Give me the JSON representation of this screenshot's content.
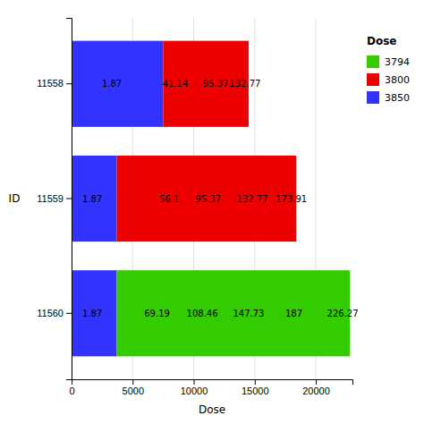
{
  "chart_data": {
    "type": "bar",
    "orientation": "horizontal",
    "stacked": true,
    "xlabel": "Dose",
    "ylabel": "ID",
    "legend_title": "Dose",
    "legend": "right",
    "grid": true,
    "categories": [
      "11558",
      "11559",
      "11560"
    ],
    "series": [
      {
        "name": "3794",
        "color": "#33CC00",
        "values": [
          null,
          null,
          19100
        ]
      },
      {
        "name": "3800",
        "color": "#EE0000",
        "values": [
          7000,
          14700,
          null
        ]
      },
      {
        "name": "3850",
        "color": "#3333FF",
        "values": [
          7500,
          3700,
          3700
        ]
      }
    ],
    "xlim": [
      0,
      23000
    ],
    "xticks": [
      0,
      5000,
      10000,
      15000,
      20000
    ],
    "annotations": [
      {
        "text": "1.87",
        "x": 3300,
        "y": "11558"
      },
      {
        "text": "41.14",
        "x": 8500,
        "y": "11558"
      },
      {
        "text": "95.37",
        "x": 11800,
        "y": "11558"
      },
      {
        "text": "132.77",
        "x": 14200,
        "y": "11558"
      },
      {
        "text": "1.87",
        "x": 1700,
        "y": "11559"
      },
      {
        "text": "56.1",
        "x": 8000,
        "y": "11559"
      },
      {
        "text": "95.37",
        "x": 11200,
        "y": "11559"
      },
      {
        "text": "132.77",
        "x": 14800,
        "y": "11559"
      },
      {
        "text": "173.91",
        "x": 18000,
        "y": "11559"
      },
      {
        "text": "1.87",
        "x": 1700,
        "y": "11560"
      },
      {
        "text": "69.19",
        "x": 7000,
        "y": "11560"
      },
      {
        "text": "108.46",
        "x": 10700,
        "y": "11560"
      },
      {
        "text": "147.73",
        "x": 14500,
        "y": "11560"
      },
      {
        "text": "187",
        "x": 18200,
        "y": "11560"
      },
      {
        "text": "226.27",
        "x": 22200,
        "y": "11560"
      }
    ]
  }
}
